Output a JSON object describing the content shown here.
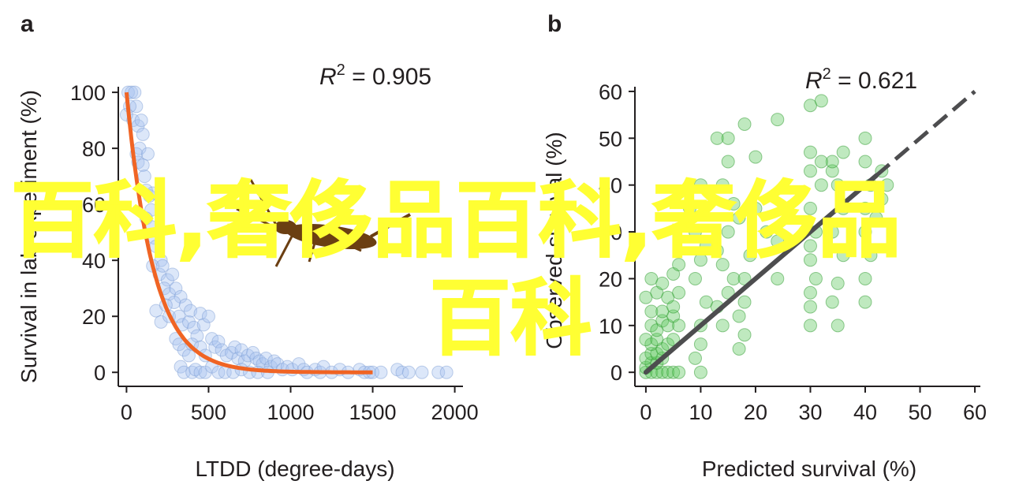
{
  "watermark": {
    "line1": "百科,奢侈品百科,奢侈品",
    "line2": "百科",
    "color": "#ffff33"
  },
  "figure_bug": {
    "icon": "bug-icon",
    "color": "#6b3f12"
  },
  "chart_data": [
    {
      "panel": "a",
      "type": "scatter",
      "xlabel": "LTDD (degree-days)",
      "ylabel": "Survival in lab experiment (%)",
      "annotation": {
        "italic": "R",
        "sup": "2",
        "rest": " = 0.905"
      },
      "xlim": [
        -50,
        2050
      ],
      "ylim": [
        -5,
        102
      ],
      "xticks": [
        0,
        500,
        1000,
        1500,
        2000
      ],
      "yticks": [
        0,
        20,
        40,
        60,
        80,
        100
      ],
      "grid": false,
      "point_color": "#a8c4f0",
      "point_edge": "#7f9fd6",
      "points": [
        [
          10,
          100
        ],
        [
          30,
          100
        ],
        [
          50,
          100
        ],
        [
          60,
          95
        ],
        [
          20,
          95
        ],
        [
          0,
          92
        ],
        [
          40,
          90
        ],
        [
          70,
          88
        ],
        [
          90,
          90
        ],
        [
          100,
          85
        ],
        [
          80,
          80
        ],
        [
          60,
          78
        ],
        [
          70,
          75
        ],
        [
          100,
          74
        ],
        [
          110,
          70
        ],
        [
          130,
          78
        ],
        [
          120,
          65
        ],
        [
          140,
          63
        ],
        [
          160,
          64
        ],
        [
          150,
          58
        ],
        [
          120,
          55
        ],
        [
          150,
          52
        ],
        [
          170,
          48
        ],
        [
          180,
          45
        ],
        [
          210,
          40
        ],
        [
          160,
          38
        ],
        [
          200,
          35
        ],
        [
          220,
          38
        ],
        [
          250,
          33
        ],
        [
          280,
          35
        ],
        [
          230,
          30
        ],
        [
          260,
          28
        ],
        [
          300,
          30
        ],
        [
          330,
          27
        ],
        [
          290,
          25
        ],
        [
          180,
          22
        ],
        [
          210,
          18
        ],
        [
          240,
          24
        ],
        [
          260,
          20
        ],
        [
          320,
          20
        ],
        [
          340,
          17
        ],
        [
          360,
          24
        ],
        [
          380,
          18
        ],
        [
          390,
          22
        ],
        [
          410,
          16
        ],
        [
          450,
          21
        ],
        [
          470,
          17
        ],
        [
          500,
          20
        ],
        [
          430,
          13
        ],
        [
          300,
          12
        ],
        [
          320,
          10
        ],
        [
          350,
          8
        ],
        [
          380,
          6
        ],
        [
          400,
          10
        ],
        [
          450,
          9
        ],
        [
          480,
          6
        ],
        [
          520,
          12
        ],
        [
          540,
          9
        ],
        [
          560,
          11
        ],
        [
          580,
          8
        ],
        [
          610,
          6
        ],
        [
          640,
          7
        ],
        [
          660,
          9
        ],
        [
          680,
          5
        ],
        [
          700,
          8
        ],
        [
          720,
          4
        ],
        [
          740,
          6
        ],
        [
          770,
          7
        ],
        [
          790,
          5
        ],
        [
          810,
          4
        ],
        [
          830,
          3
        ],
        [
          850,
          5
        ],
        [
          880,
          2
        ],
        [
          900,
          4
        ],
        [
          920,
          3
        ],
        [
          950,
          1
        ],
        [
          980,
          2
        ],
        [
          1010,
          1
        ],
        [
          1050,
          3
        ],
        [
          1080,
          1
        ],
        [
          1100,
          0
        ],
        [
          1150,
          1
        ],
        [
          1180,
          0
        ],
        [
          1200,
          2
        ],
        [
          1250,
          0
        ],
        [
          1300,
          1
        ],
        [
          1350,
          0
        ],
        [
          1420,
          1
        ],
        [
          1450,
          0
        ],
        [
          1480,
          0
        ],
        [
          1500,
          0
        ],
        [
          1550,
          0
        ],
        [
          1650,
          1
        ],
        [
          1680,
          0
        ],
        [
          1720,
          0
        ],
        [
          1800,
          0
        ],
        [
          1900,
          0
        ],
        [
          1950,
          0
        ],
        [
          330,
          2
        ],
        [
          350,
          0
        ],
        [
          400,
          0
        ],
        [
          420,
          1
        ],
        [
          450,
          0
        ],
        [
          480,
          0
        ],
        [
          520,
          2
        ],
        [
          560,
          0
        ],
        [
          600,
          0
        ],
        [
          650,
          0
        ],
        [
          700,
          1
        ],
        [
          750,
          0
        ],
        [
          800,
          0
        ],
        [
          860,
          0
        ]
      ],
      "fit_curve": {
        "color": "#f06424",
        "model": "100*exp(-x/165)",
        "x_range": [
          0,
          1500
        ]
      }
    },
    {
      "panel": "b",
      "type": "scatter",
      "xlabel": "Predicted survival (%)",
      "ylabel": "Observed survival (%)",
      "annotation": {
        "italic": "R",
        "sup": "2",
        "rest": " = 0.621"
      },
      "xlim": [
        -2,
        61
      ],
      "ylim": [
        -3,
        61
      ],
      "xticks": [
        0,
        10,
        20,
        30,
        40,
        50,
        60
      ],
      "yticks": [
        0,
        10,
        20,
        30,
        40,
        50,
        60
      ],
      "grid": false,
      "point_color": "#5fc85f",
      "point_edge": "#2e9a2e",
      "points": [
        [
          0,
          0
        ],
        [
          1,
          0
        ],
        [
          2,
          0
        ],
        [
          3,
          0
        ],
        [
          4,
          0
        ],
        [
          5,
          0
        ],
        [
          6,
          0
        ],
        [
          0,
          1
        ],
        [
          1,
          2
        ],
        [
          2,
          2
        ],
        [
          3,
          3
        ],
        [
          0,
          3
        ],
        [
          1,
          4
        ],
        [
          2,
          4
        ],
        [
          3,
          5
        ],
        [
          1,
          6
        ],
        [
          0,
          7
        ],
        [
          2,
          7
        ],
        [
          4,
          6
        ],
        [
          5,
          7
        ],
        [
          1,
          10
        ],
        [
          2,
          9
        ],
        [
          3,
          11
        ],
        [
          4,
          10
        ],
        [
          5,
          12
        ],
        [
          1,
          13
        ],
        [
          3,
          13
        ],
        [
          5,
          14
        ],
        [
          6,
          10
        ],
        [
          0,
          16
        ],
        [
          2,
          17
        ],
        [
          4,
          16
        ],
        [
          6,
          17
        ],
        [
          1,
          20
        ],
        [
          3,
          19
        ],
        [
          5,
          21
        ],
        [
          6,
          23
        ],
        [
          10,
          0
        ],
        [
          9,
          3
        ],
        [
          10,
          6
        ],
        [
          10,
          10
        ],
        [
          11,
          15
        ],
        [
          9,
          20
        ],
        [
          10,
          24
        ],
        [
          11,
          27
        ],
        [
          9,
          30
        ],
        [
          8,
          35
        ],
        [
          10,
          40
        ],
        [
          14,
          10
        ],
        [
          13,
          14
        ],
        [
          15,
          17
        ],
        [
          16,
          20
        ],
        [
          14,
          23
        ],
        [
          13,
          26
        ],
        [
          15,
          30
        ],
        [
          17,
          33
        ],
        [
          16,
          36
        ],
        [
          14,
          40
        ],
        [
          15,
          45
        ],
        [
          13,
          50
        ],
        [
          15,
          50
        ],
        [
          17,
          12
        ],
        [
          18,
          8
        ],
        [
          17,
          5
        ],
        [
          18,
          15
        ],
        [
          18,
          20
        ],
        [
          19,
          25
        ],
        [
          20,
          35
        ],
        [
          20,
          46
        ],
        [
          18,
          53
        ],
        [
          24,
          54
        ],
        [
          22,
          30
        ],
        [
          24,
          20
        ],
        [
          24,
          28
        ],
        [
          30,
          10
        ],
        [
          30,
          14
        ],
        [
          30,
          17
        ],
        [
          31,
          20
        ],
        [
          30,
          24
        ],
        [
          30,
          27
        ],
        [
          31,
          30
        ],
        [
          30,
          35
        ],
        [
          32,
          40
        ],
        [
          30,
          43
        ],
        [
          30,
          47
        ],
        [
          30,
          57
        ],
        [
          32,
          58
        ],
        [
          35,
          10
        ],
        [
          34,
          15
        ],
        [
          35,
          19
        ],
        [
          36,
          25
        ],
        [
          34,
          30
        ],
        [
          36,
          35
        ],
        [
          35,
          40
        ],
        [
          34,
          43
        ],
        [
          36,
          47
        ],
        [
          34,
          45
        ],
        [
          32,
          45
        ],
        [
          40,
          15
        ],
        [
          40,
          20
        ],
        [
          41,
          25
        ],
        [
          40,
          30
        ],
        [
          40,
          35
        ],
        [
          41,
          40
        ],
        [
          40,
          45
        ],
        [
          40,
          50
        ],
        [
          43,
          37
        ],
        [
          42,
          33
        ],
        [
          44,
          40
        ],
        [
          43,
          43
        ]
      ],
      "fit_line": {
        "color": "#4d4d4f",
        "from": [
          0,
          0
        ],
        "to": [
          60,
          60
        ],
        "solid_until": 42
      }
    }
  ]
}
